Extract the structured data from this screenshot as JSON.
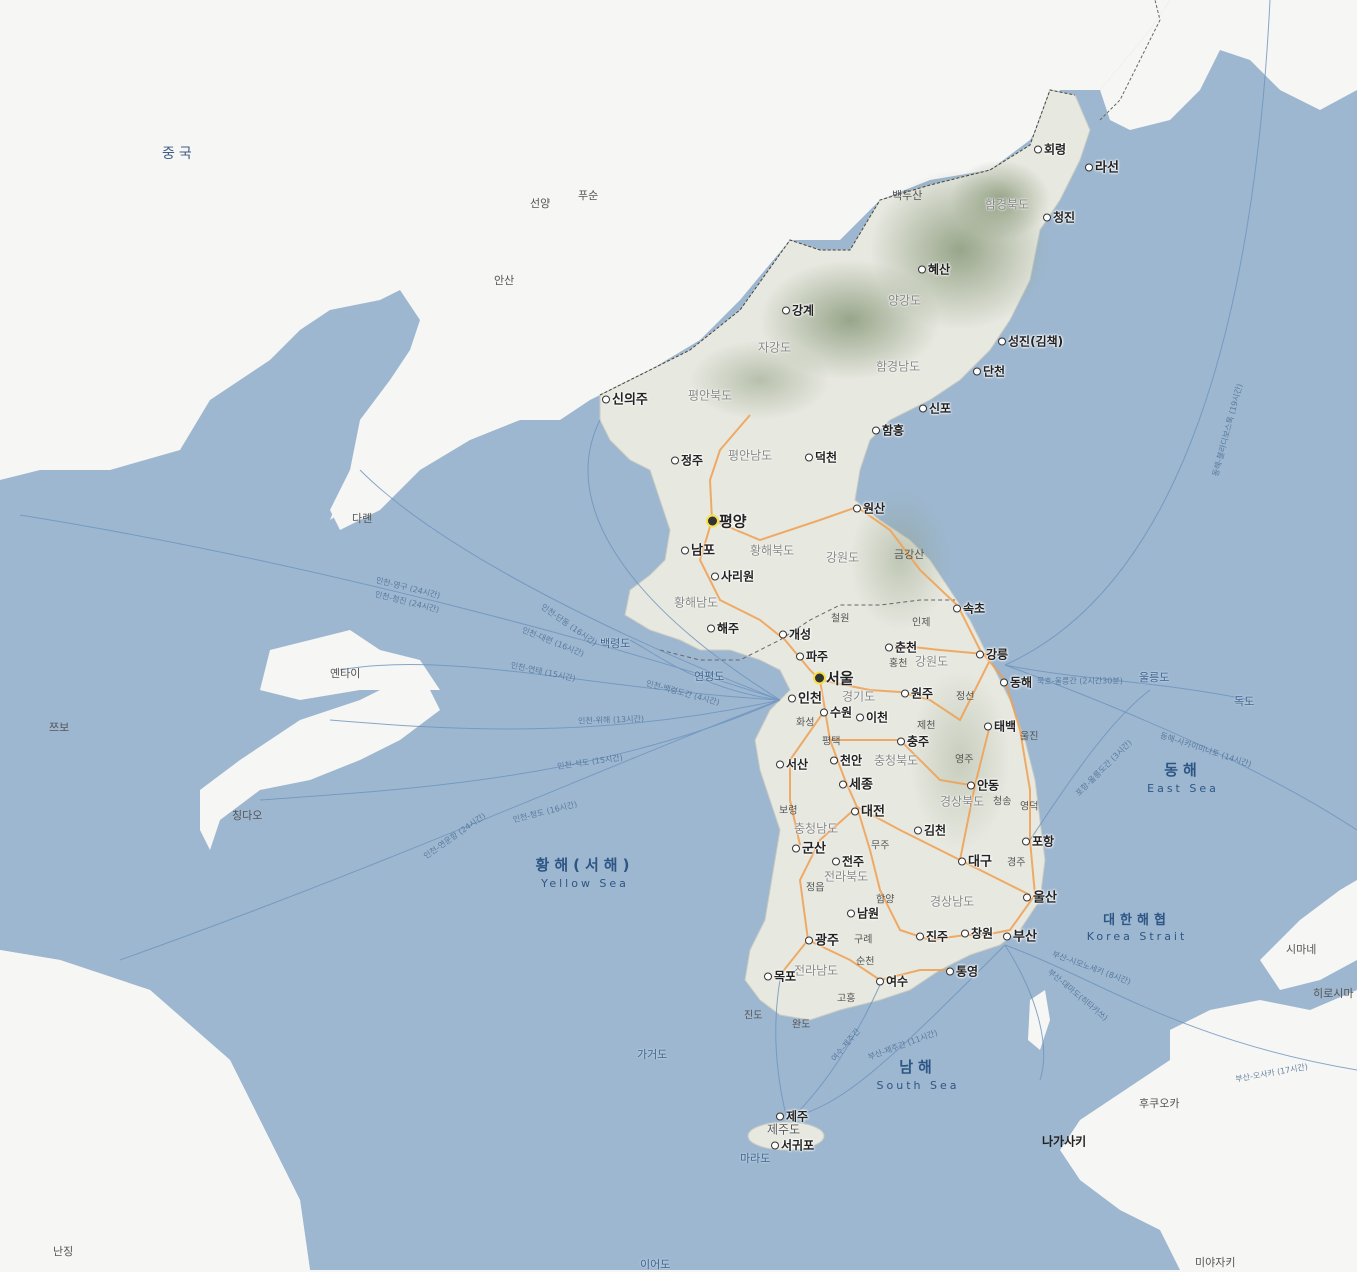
{
  "colors": {
    "sea": "#9db7d0",
    "land_foreign": "#f6f6f4",
    "land_korea": "#e7e8e0",
    "mountain": "#9aa98c",
    "road": "#f0a050",
    "ferry_route": "#6c92bd",
    "border": "#444444"
  },
  "map": {
    "countries": [
      {
        "id": "china",
        "label": "중국"
      }
    ],
    "seas": [
      {
        "id": "yellow-sea",
        "ko": "황해(서해)",
        "en": "Yellow Sea"
      },
      {
        "id": "east-sea",
        "ko": "동해",
        "en": "East Sea"
      },
      {
        "id": "south-sea",
        "ko": "남해",
        "en": "South Sea"
      },
      {
        "id": "korea-strait",
        "ko": "대한해협",
        "en": "Korea Strait"
      }
    ],
    "foreign_places": [
      {
        "id": "sunyang",
        "label": "선양"
      },
      {
        "id": "fushun",
        "label": "푸순"
      },
      {
        "id": "anshan",
        "label": "안산"
      },
      {
        "id": "dalian",
        "label": "다롄"
      },
      {
        "id": "yantai",
        "label": "옌타이"
      },
      {
        "id": "zibo",
        "label": "쯔보"
      },
      {
        "id": "qingdao",
        "label": "칭다오"
      },
      {
        "id": "nanjing",
        "label": "난징"
      },
      {
        "id": "shimane",
        "label": "시마네"
      },
      {
        "id": "hiroshima",
        "label": "히로시마"
      },
      {
        "id": "fukuoka",
        "label": "후쿠오카"
      },
      {
        "id": "nagasaki",
        "label": "나가사키"
      },
      {
        "id": "miyazaki",
        "label": "미야자키"
      }
    ],
    "provinces": [
      {
        "id": "hamgyeongbukdo",
        "label": "함경북도"
      },
      {
        "id": "yanggangdo",
        "label": "양강도"
      },
      {
        "id": "jagangdo",
        "label": "자강도"
      },
      {
        "id": "hamgyeongnamdo",
        "label": "함경남도"
      },
      {
        "id": "pyeonganbukdo",
        "label": "평안북도"
      },
      {
        "id": "pyeongannamdo",
        "label": "평안남도"
      },
      {
        "id": "hwanghaebukdo",
        "label": "황해북도"
      },
      {
        "id": "hwanghaenamdo",
        "label": "황해남도"
      },
      {
        "id": "gangwondo-n",
        "label": "강원도"
      },
      {
        "id": "gangwondo-s",
        "label": "강원도"
      },
      {
        "id": "gyeonggido",
        "label": "경기도"
      },
      {
        "id": "chungcheongbukdo",
        "label": "충청북도"
      },
      {
        "id": "chungcheongnamdo",
        "label": "충청남도"
      },
      {
        "id": "gyeongsangbukdo",
        "label": "경상북도"
      },
      {
        "id": "jeollabukdo",
        "label": "전라북도"
      },
      {
        "id": "gyeongsangnamdo",
        "label": "경상남도"
      },
      {
        "id": "jeollanamdo",
        "label": "전라남도"
      },
      {
        "id": "jejudo",
        "label": "제주도"
      }
    ],
    "cities": [
      {
        "id": "seoul",
        "label": "서울",
        "rank": "capital"
      },
      {
        "id": "pyongyang",
        "label": "평양",
        "rank": "capital"
      },
      {
        "id": "hoeryong",
        "label": "회령"
      },
      {
        "id": "rason",
        "label": "라선"
      },
      {
        "id": "chongjin",
        "label": "청진"
      },
      {
        "id": "hyesan",
        "label": "혜산"
      },
      {
        "id": "kanggye",
        "label": "강계"
      },
      {
        "id": "songjin",
        "label": "성진(김책)"
      },
      {
        "id": "tanchon",
        "label": "단천"
      },
      {
        "id": "sinuiju",
        "label": "신의주"
      },
      {
        "id": "sinpo",
        "label": "신포"
      },
      {
        "id": "hamhung",
        "label": "함흥"
      },
      {
        "id": "jongju",
        "label": "정주"
      },
      {
        "id": "tokchon",
        "label": "덕천"
      },
      {
        "id": "wonsan",
        "label": "원산"
      },
      {
        "id": "nampo",
        "label": "남포"
      },
      {
        "id": "sariwon",
        "label": "사리원"
      },
      {
        "id": "haeju",
        "label": "해주"
      },
      {
        "id": "kaesong",
        "label": "개성"
      },
      {
        "id": "sokcho",
        "label": "속초"
      },
      {
        "id": "chuncheon",
        "label": "춘천"
      },
      {
        "id": "paju",
        "label": "파주"
      },
      {
        "id": "gangneung",
        "label": "강릉"
      },
      {
        "id": "donghae",
        "label": "동해"
      },
      {
        "id": "incheon",
        "label": "인천"
      },
      {
        "id": "suwon",
        "label": "수원"
      },
      {
        "id": "icheon",
        "label": "이천"
      },
      {
        "id": "wonju",
        "label": "원주"
      },
      {
        "id": "taebaek",
        "label": "태백"
      },
      {
        "id": "chungju",
        "label": "충주"
      },
      {
        "id": "seosan",
        "label": "서산"
      },
      {
        "id": "cheonan",
        "label": "천안"
      },
      {
        "id": "sejong",
        "label": "세종"
      },
      {
        "id": "andong",
        "label": "안동"
      },
      {
        "id": "daejeon",
        "label": "대전"
      },
      {
        "id": "pohang",
        "label": "포항"
      },
      {
        "id": "gimcheon",
        "label": "김천"
      },
      {
        "id": "gunsan",
        "label": "군산"
      },
      {
        "id": "jeonju",
        "label": "전주"
      },
      {
        "id": "daegu",
        "label": "대구"
      },
      {
        "id": "ulsan",
        "label": "울산"
      },
      {
        "id": "namwon",
        "label": "남원"
      },
      {
        "id": "gwangju",
        "label": "광주"
      },
      {
        "id": "jinju",
        "label": "진주"
      },
      {
        "id": "changwon",
        "label": "창원"
      },
      {
        "id": "busan",
        "label": "부산"
      },
      {
        "id": "mokpo",
        "label": "목포"
      },
      {
        "id": "yeosu",
        "label": "여수"
      },
      {
        "id": "tongyeong",
        "label": "통영"
      },
      {
        "id": "jeju",
        "label": "제주"
      },
      {
        "id": "seogwipo",
        "label": "서귀포"
      }
    ],
    "small_places": [
      {
        "id": "baekdusan",
        "label": "백두산"
      },
      {
        "id": "geumgangsan",
        "label": "금강산"
      },
      {
        "id": "cheorwon",
        "label": "철원"
      },
      {
        "id": "inje",
        "label": "인제"
      },
      {
        "id": "hongcheon",
        "label": "홍천"
      },
      {
        "id": "hwaseong",
        "label": "화성"
      },
      {
        "id": "pyeongtaek",
        "label": "평택"
      },
      {
        "id": "jecheon",
        "label": "제천"
      },
      {
        "id": "jeongseon",
        "label": "정선"
      },
      {
        "id": "uljin",
        "label": "울진"
      },
      {
        "id": "yeongju",
        "label": "영주"
      },
      {
        "id": "cheongsong",
        "label": "청송"
      },
      {
        "id": "yeongdeok",
        "label": "영덕"
      },
      {
        "id": "boryeong",
        "label": "보령"
      },
      {
        "id": "muju",
        "label": "무주"
      },
      {
        "id": "gyeongju",
        "label": "경주"
      },
      {
        "id": "jeongeup",
        "label": "정읍"
      },
      {
        "id": "hamyang",
        "label": "함양"
      },
      {
        "id": "gurye",
        "label": "구례"
      },
      {
        "id": "suncheon",
        "label": "순천"
      },
      {
        "id": "goheung",
        "label": "고흥"
      },
      {
        "id": "jindo",
        "label": "진도"
      },
      {
        "id": "wando",
        "label": "완도"
      }
    ],
    "islands": [
      {
        "id": "baengnyeongdo",
        "label": "백령도"
      },
      {
        "id": "yeonpyeongdo",
        "label": "연평도"
      },
      {
        "id": "ulleungdo",
        "label": "울릉도"
      },
      {
        "id": "dokdo",
        "label": "독도"
      },
      {
        "id": "gageodo",
        "label": "가거도"
      },
      {
        "id": "marado",
        "label": "마라도"
      },
      {
        "id": "ieodo",
        "label": "이어도"
      }
    ],
    "ferry_routes": [
      {
        "id": "r1",
        "label": "인천-영구 (24시간)"
      },
      {
        "id": "r2",
        "label": "인천-청진 (24시간)"
      },
      {
        "id": "r3",
        "label": "인천-단동 (16시간)"
      },
      {
        "id": "r4",
        "label": "인천-대련 (16시간)"
      },
      {
        "id": "r5",
        "label": "인천-백령도간 (4시간)"
      },
      {
        "id": "r6",
        "label": "인천-연태 (15시간)"
      },
      {
        "id": "r7",
        "label": "인천-위해 (13시간)"
      },
      {
        "id": "r8",
        "label": "인천-석도 (15시간)"
      },
      {
        "id": "r9",
        "label": "인천-청도 (16시간)"
      },
      {
        "id": "r10",
        "label": "인천-연운항 (24시간)"
      },
      {
        "id": "r11",
        "label": "묵호-울릉간 (2시간30분)"
      },
      {
        "id": "r12",
        "label": "동해-사카이미나토 (14시간)"
      },
      {
        "id": "r13",
        "label": "동해-블라디보스톡 (19시간)"
      },
      {
        "id": "r14",
        "label": "포항-울릉도간 (3시간)"
      },
      {
        "id": "r15",
        "label": "부산-시모노세키 (8시간)"
      },
      {
        "id": "r16",
        "label": "부산-대마도(히타카쓰)"
      },
      {
        "id": "r17",
        "label": "부산-오사카 (17시간)"
      },
      {
        "id": "r18",
        "label": "부산-제주간 (11시간)"
      },
      {
        "id": "r19",
        "label": "여수-제주간"
      }
    ]
  }
}
